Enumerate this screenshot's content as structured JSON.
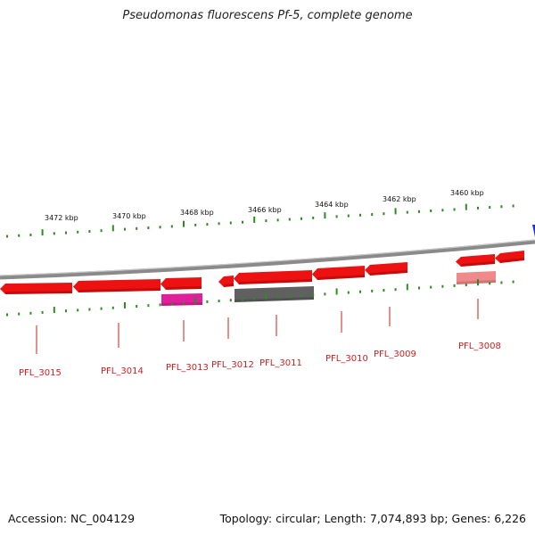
{
  "title": "Pseudomonas fluorescens Pf-5, complete genome",
  "footer": {
    "accession": "Accession: NC_004129",
    "topology": "Topology: circular; Length: 7,074,893 bp; Genes: 6,226"
  },
  "colors": {
    "ticks": "#2e8b22",
    "backbone": "#8a8a8a",
    "gene_forward": "#ee1111",
    "gene_pink": "#e0209a",
    "gene_gray": "#606060",
    "gene_light": "#f08a8a",
    "label": "#cc1f1f",
    "marker": "#2233dd"
  },
  "kbp_labels": [
    "3472 kbp",
    "3470 kbp",
    "3468 kbp",
    "3466 kbp",
    "3464 kbp",
    "3462 kbp",
    "3460 kbp"
  ],
  "gene_labels": [
    "PFL_3015",
    "PFL_3014",
    "PFL_3013",
    "PFL_3012",
    "PFL_3011",
    "PFL_3010",
    "PFL_3009",
    "PFL_3008"
  ]
}
